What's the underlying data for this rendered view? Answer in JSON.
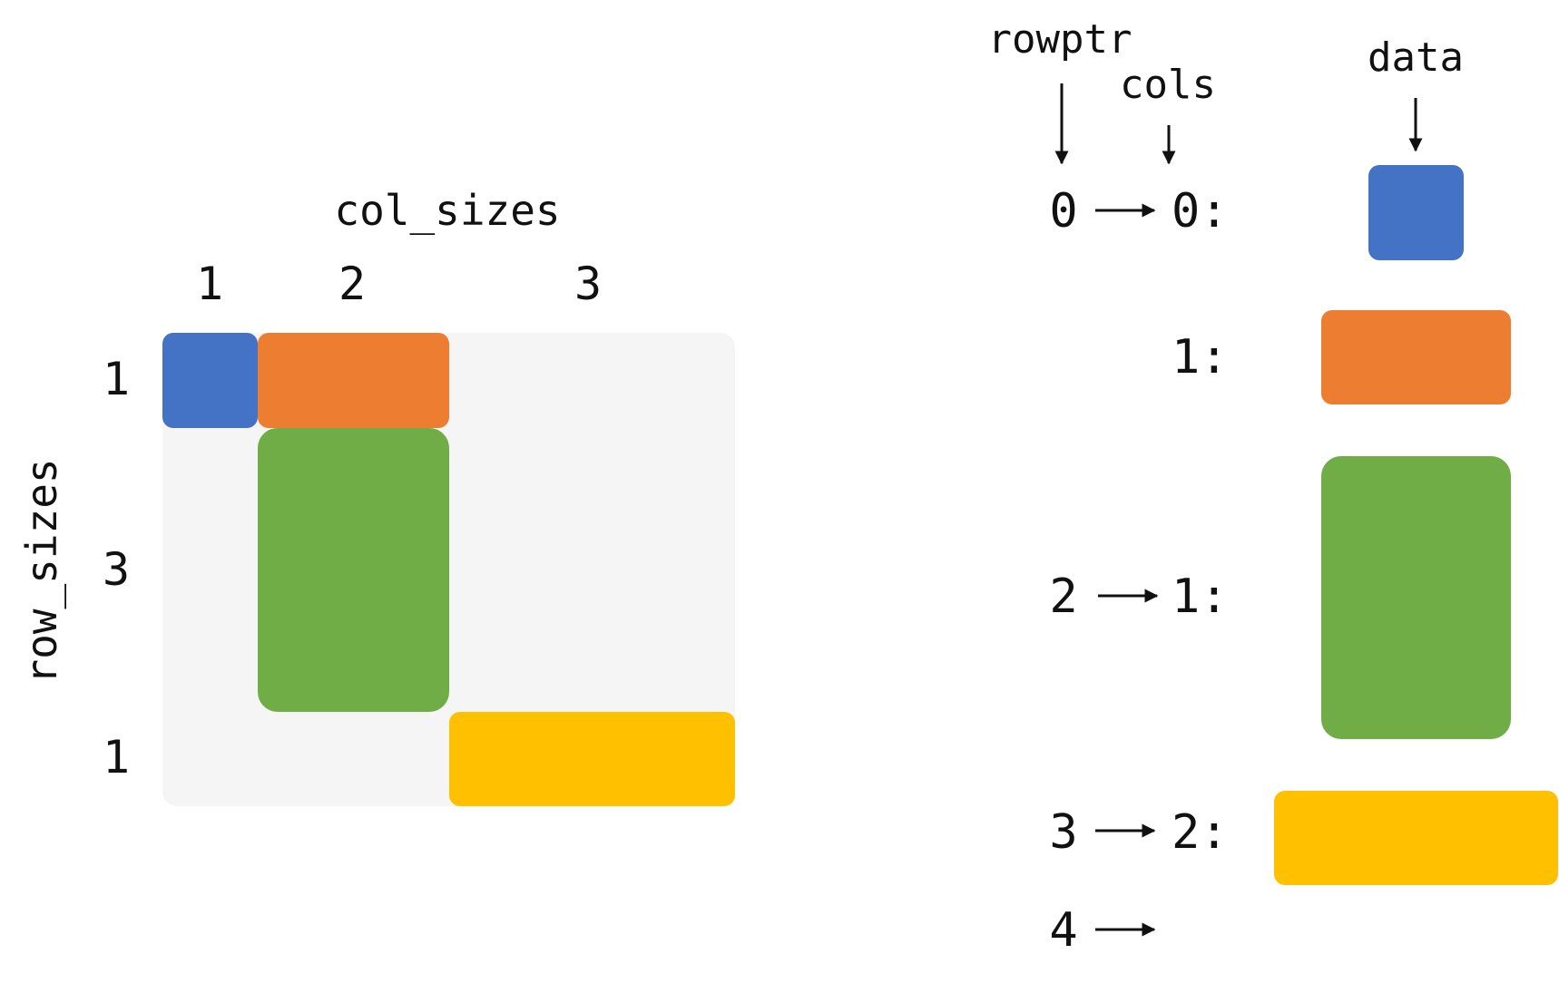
{
  "matrix": {
    "col_sizes_label": "col_sizes",
    "row_sizes_label": "row_sizes",
    "col_sizes": [
      "1",
      "2",
      "3"
    ],
    "row_sizes": [
      "1",
      "3",
      "1"
    ],
    "background_color": "#f5f5f5",
    "blocks": [
      {
        "name": "blue-block",
        "row": 0,
        "col": 0,
        "color": "#4472c4"
      },
      {
        "name": "orange-block",
        "row": 0,
        "col": 1,
        "color": "#ed7d31"
      },
      {
        "name": "green-block",
        "row": 1,
        "col": 1,
        "color": "#70ad47"
      },
      {
        "name": "yellow-block",
        "row": 2,
        "col": 2,
        "color": "#ffc000"
      }
    ]
  },
  "csr": {
    "rowptr_label": "rowptr",
    "cols_label": "cols",
    "data_label": "data",
    "rowptr": [
      "0",
      "2",
      "3",
      "4"
    ],
    "cols": [
      "0:",
      "1:",
      "1:",
      "2:"
    ],
    "data_colors": [
      "#4472c4",
      "#ed7d31",
      "#70ad47",
      "#ffc000"
    ]
  }
}
